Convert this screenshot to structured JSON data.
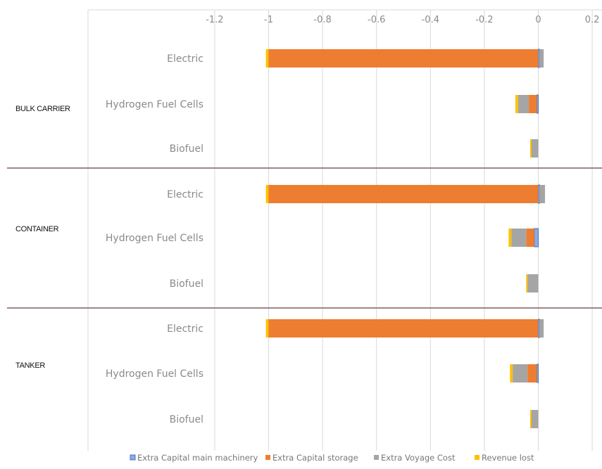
{
  "chart_data": {
    "type": "bar",
    "orientation": "horizontal",
    "stacked": true,
    "xlim": [
      -1.2,
      0.2
    ],
    "x_ticks": [
      "-1.2",
      "-1",
      "-0.8",
      "-0.6",
      "-0.4",
      "-0.2",
      "0",
      "0.2"
    ],
    "x_tick_values": [
      -1.2,
      -1.0,
      -0.8,
      -0.6,
      -0.4,
      -0.2,
      0,
      0.2
    ],
    "axis_position": "top",
    "grid": true,
    "legend_position": "bottom",
    "groups": [
      {
        "name": "BULK CARRIER",
        "categories": [
          {
            "label": "Electric",
            "values": {
              "extra_capital_main_machinery": 0.005,
              "extra_capital_storage": -1.0,
              "extra_voyage_cost": 0.015,
              "revenue_lost": -0.01
            }
          },
          {
            "label": "Hydrogen Fuel Cells",
            "values": {
              "extra_capital_main_machinery": -0.005,
              "extra_capital_storage": -0.03,
              "extra_voyage_cost": -0.04,
              "revenue_lost": -0.01
            }
          },
          {
            "label": "Biofuel",
            "values": {
              "extra_capital_main_machinery": 0,
              "extra_capital_storage": 0,
              "extra_voyage_cost": -0.025,
              "revenue_lost": -0.005
            }
          }
        ]
      },
      {
        "name": "CONTAINER",
        "categories": [
          {
            "label": "Electric",
            "values": {
              "extra_capital_main_machinery": 0.005,
              "extra_capital_storage": -1.0,
              "extra_voyage_cost": 0.02,
              "revenue_lost": -0.01
            }
          },
          {
            "label": "Hydrogen Fuel Cells",
            "values": {
              "extra_capital_main_machinery": -0.015,
              "extra_capital_storage": -0.03,
              "extra_voyage_cost": -0.055,
              "revenue_lost": -0.01
            }
          },
          {
            "label": "Biofuel",
            "values": {
              "extra_capital_main_machinery": 0,
              "extra_capital_storage": 0,
              "extra_voyage_cost": -0.04,
              "revenue_lost": -0.005
            }
          }
        ]
      },
      {
        "name": "TANKER",
        "categories": [
          {
            "label": "Electric",
            "values": {
              "extra_capital_main_machinery": 0.005,
              "extra_capital_storage": -1.0,
              "extra_voyage_cost": 0.015,
              "revenue_lost": -0.01
            }
          },
          {
            "label": "Hydrogen Fuel Cells",
            "values": {
              "extra_capital_main_machinery": -0.005,
              "extra_capital_storage": -0.035,
              "extra_voyage_cost": -0.055,
              "revenue_lost": -0.01
            }
          },
          {
            "label": "Biofuel",
            "values": {
              "extra_capital_main_machinery": 0,
              "extra_capital_storage": 0,
              "extra_voyage_cost": -0.025,
              "revenue_lost": -0.005
            }
          }
        ]
      }
    ],
    "series": [
      {
        "key": "extra_capital_main_machinery",
        "name": "Extra Capital main machinery",
        "color": "#4472C4",
        "fill": "#8FAADC"
      },
      {
        "key": "extra_capital_storage",
        "name": "Extra Capital storage",
        "color": "#ED7D31"
      },
      {
        "key": "extra_voyage_cost",
        "name": "Extra Voyage Cost",
        "color": "#A5A5A5"
      },
      {
        "key": "revenue_lost",
        "name": "Revenue lost",
        "color": "#FFC000"
      }
    ],
    "colors": {
      "grid": "#d9d9d9",
      "separator": "#7f5f5f",
      "tick_text": "#8a8a8a",
      "group_text": "#111111"
    }
  }
}
